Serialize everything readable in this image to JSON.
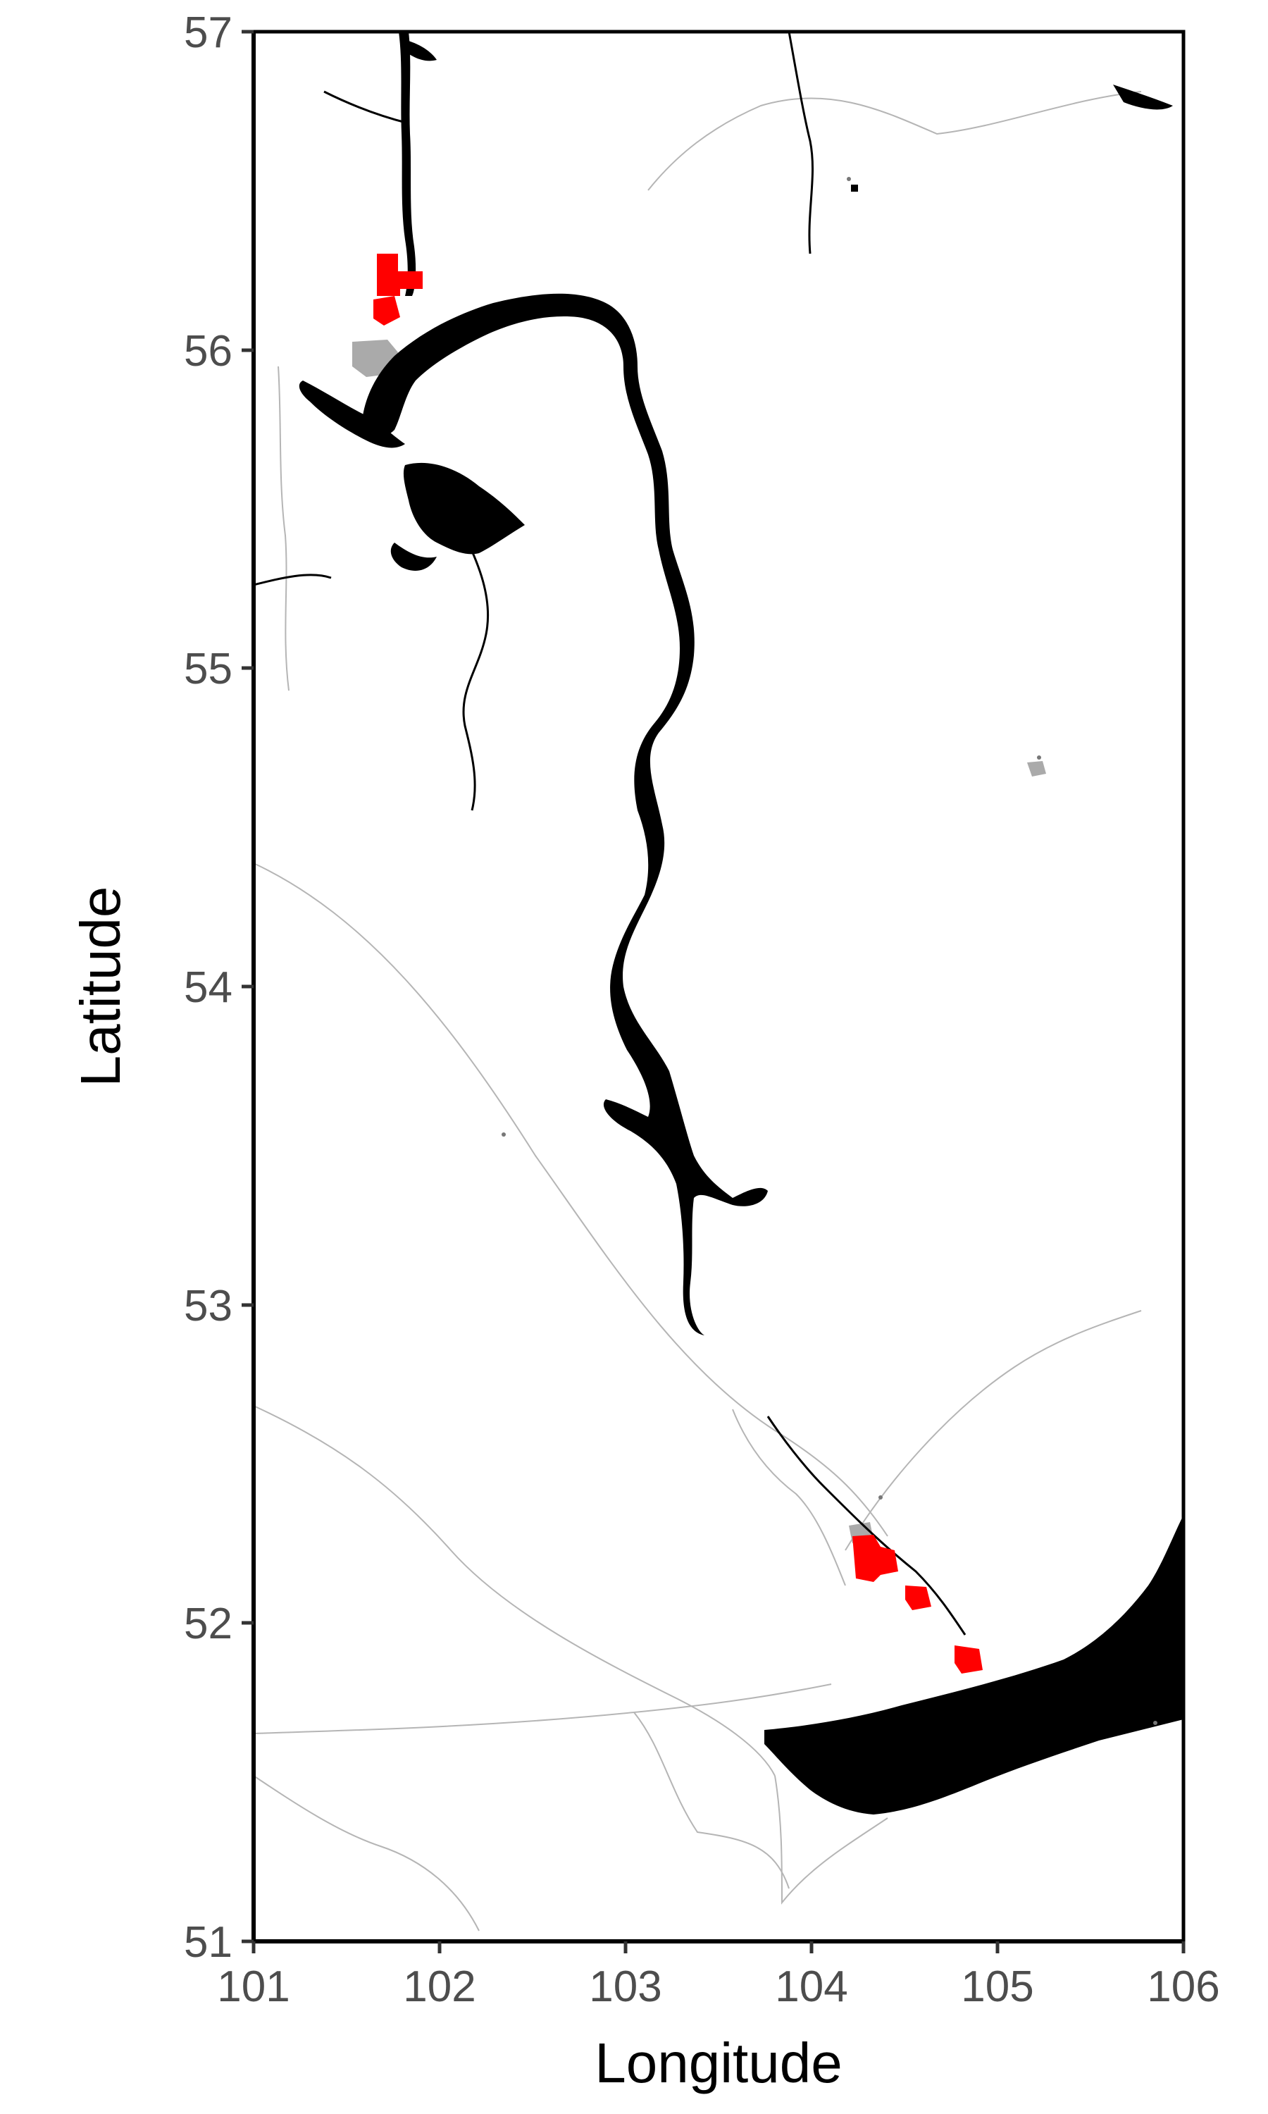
{
  "map": {
    "x_axis": {
      "title": "Longitude",
      "ticks": [
        "101",
        "102",
        "103",
        "104",
        "105",
        "106"
      ],
      "range": [
        101,
        106
      ]
    },
    "y_axis": {
      "title": "Latitude",
      "ticks": [
        "51",
        "52",
        "53",
        "54",
        "55",
        "56",
        "57"
      ],
      "range": [
        51,
        57
      ]
    },
    "colors": {
      "water": "#000000",
      "highlight": "#ff0000",
      "settlement": "#aaaaaa",
      "road": "#b5b5b5",
      "frame": "#000000",
      "background": "#ffffff"
    },
    "features": {
      "reservoir_main": "water",
      "lake_southeast": "water",
      "highlighted_segments": 5
    }
  }
}
